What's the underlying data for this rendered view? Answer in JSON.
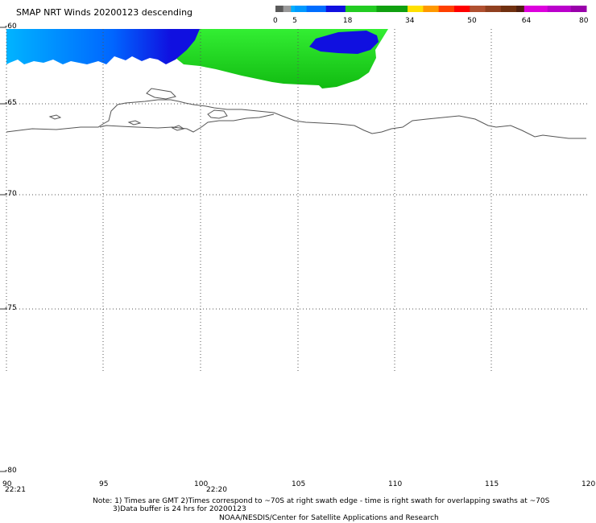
{
  "title": "SMAP NRT Winds  20200123  descending",
  "colorbar": {
    "labels": [
      "0",
      "5",
      "18",
      "34",
      "50",
      "64",
      "80"
    ],
    "segments": [
      {
        "from": 0,
        "to": 2,
        "color": "#5a5a5a"
      },
      {
        "from": 2,
        "to": 4,
        "color": "#9a9a9a"
      },
      {
        "from": 4,
        "to": 5,
        "color": "#00b0ff"
      },
      {
        "from": 5,
        "to": 8,
        "color": "#0099ff"
      },
      {
        "from": 8,
        "to": 13,
        "color": "#006dff"
      },
      {
        "from": 13,
        "to": 18,
        "color": "#1010e0"
      },
      {
        "from": 18,
        "to": 26,
        "color": "#22cc22"
      },
      {
        "from": 26,
        "to": 34,
        "color": "#10a010"
      },
      {
        "from": 34,
        "to": 38,
        "color": "#ffe000"
      },
      {
        "from": 38,
        "to": 42,
        "color": "#ff9900"
      },
      {
        "from": 42,
        "to": 46,
        "color": "#ff4000"
      },
      {
        "from": 46,
        "to": 50,
        "color": "#ff0000"
      },
      {
        "from": 50,
        "to": 54,
        "color": "#b05030"
      },
      {
        "from": 54,
        "to": 58,
        "color": "#904020"
      },
      {
        "from": 58,
        "to": 62,
        "color": "#703010"
      },
      {
        "from": 62,
        "to": 64,
        "color": "#502010"
      },
      {
        "from": 64,
        "to": 70,
        "color": "#dd00dd"
      },
      {
        "from": 70,
        "to": 76,
        "color": "#bb00cc"
      },
      {
        "from": 76,
        "to": 80,
        "color": "#9900aa"
      }
    ]
  },
  "lat_labels": [
    "-60",
    "-65",
    "-70",
    "-75",
    "-80"
  ],
  "lon_labels": [
    "90",
    "95",
    "100",
    "105",
    "110",
    "115",
    "120"
  ],
  "time_labels": [
    "22:21",
    "22:20"
  ],
  "notes": [
    "Note: 1) Times are GMT 2)Times correspond to ~70S at right swath edge - time is right swath for overlapping swaths at ~70S",
    "3)Data buffer is 24 hrs for 20200123",
    "NOAA/NESDIS/Center for Satellite Applications and Research"
  ],
  "colors": {
    "wind_light_blue": "#00a8ff",
    "wind_mid_blue": "#0066ff",
    "wind_dark_blue": "#1010e0",
    "wind_green": "#22dd22",
    "wind_dark_green": "#11bb11",
    "coastline": "#555555",
    "grid": "#555555"
  }
}
